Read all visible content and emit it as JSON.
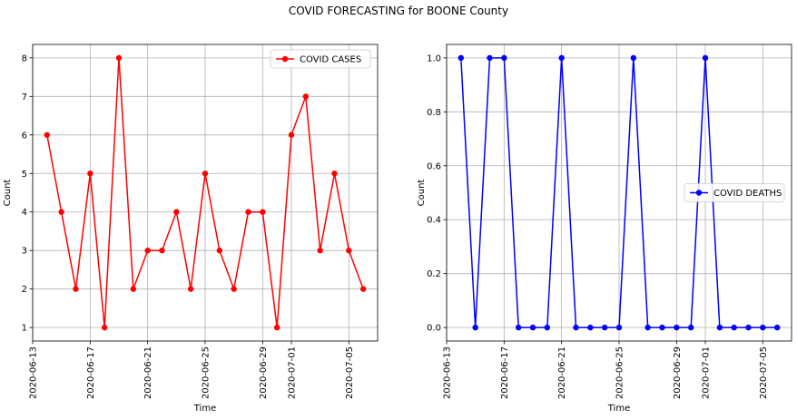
{
  "figure": {
    "suptitle": "COVID FORECASTING for BOONE County"
  },
  "chart_data": [
    {
      "type": "line",
      "xlabel": "Time",
      "ylabel": "Count",
      "x_dates": [
        "2020-06-14",
        "2020-06-15",
        "2020-06-16",
        "2020-06-17",
        "2020-06-18",
        "2020-06-19",
        "2020-06-20",
        "2020-06-21",
        "2020-06-22",
        "2020-06-23",
        "2020-06-24",
        "2020-06-25",
        "2020-06-26",
        "2020-06-27",
        "2020-06-28",
        "2020-06-29",
        "2020-06-30",
        "2020-07-01",
        "2020-07-02",
        "2020-07-03",
        "2020-07-04",
        "2020-07-05",
        "2020-07-06"
      ],
      "x_ticks": [
        "2020-06-13",
        "2020-06-17",
        "2020-06-21",
        "2020-06-25",
        "2020-06-29",
        "2020-07-01",
        "2020-07-05"
      ],
      "y_ticks": [
        1,
        2,
        3,
        4,
        5,
        6,
        7,
        8
      ],
      "ylim": [
        0.65,
        8.35
      ],
      "xlim": [
        "2020-06-13",
        "2020-07-07"
      ],
      "grid": true,
      "legend_position": "top-right",
      "series": [
        {
          "name": "COVID CASES",
          "color": "#ff0000",
          "values": [
            6,
            4,
            2,
            5,
            1,
            8,
            2,
            3,
            3,
            4,
            2,
            5,
            3,
            2,
            4,
            4,
            1,
            6,
            7,
            3,
            5,
            3,
            2
          ]
        }
      ]
    },
    {
      "type": "line",
      "xlabel": "Time",
      "ylabel": "Count",
      "x_dates": [
        "2020-06-14",
        "2020-06-15",
        "2020-06-16",
        "2020-06-17",
        "2020-06-18",
        "2020-06-19",
        "2020-06-20",
        "2020-06-21",
        "2020-06-22",
        "2020-06-23",
        "2020-06-24",
        "2020-06-25",
        "2020-06-26",
        "2020-06-27",
        "2020-06-28",
        "2020-06-29",
        "2020-06-30",
        "2020-07-01",
        "2020-07-02",
        "2020-07-03",
        "2020-07-04",
        "2020-07-05",
        "2020-07-06"
      ],
      "x_ticks": [
        "2020-06-13",
        "2020-06-17",
        "2020-06-21",
        "2020-06-25",
        "2020-06-29",
        "2020-07-01",
        "2020-07-05"
      ],
      "y_ticks": [
        0.0,
        0.2,
        0.4,
        0.6,
        0.8,
        1.0
      ],
      "ylim": [
        -0.05,
        1.05
      ],
      "xlim": [
        "2020-06-13",
        "2020-07-07"
      ],
      "grid": true,
      "legend_position": "center-right",
      "series": [
        {
          "name": "COVID DEATHS",
          "color": "#0000ff",
          "values": [
            1,
            0,
            1,
            1,
            0,
            0,
            0,
            1,
            0,
            0,
            0,
            0,
            1,
            0,
            0,
            0,
            0,
            1,
            0,
            0,
            0,
            0,
            0
          ]
        }
      ]
    }
  ]
}
